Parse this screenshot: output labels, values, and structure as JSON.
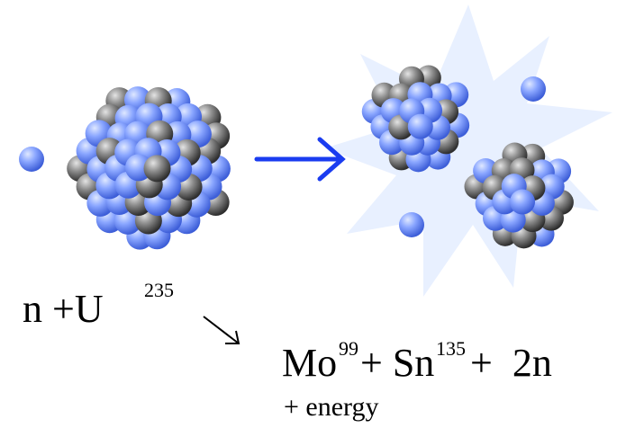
{
  "reactants": {
    "text": "n +U",
    "superscript": "235"
  },
  "products": [
    {
      "text": "Mo",
      "superscript": "99"
    },
    {
      "text": "+ Sn",
      "superscript": "135"
    },
    {
      "text": "+  2n"
    }
  ],
  "energy": "+ energy"
}
